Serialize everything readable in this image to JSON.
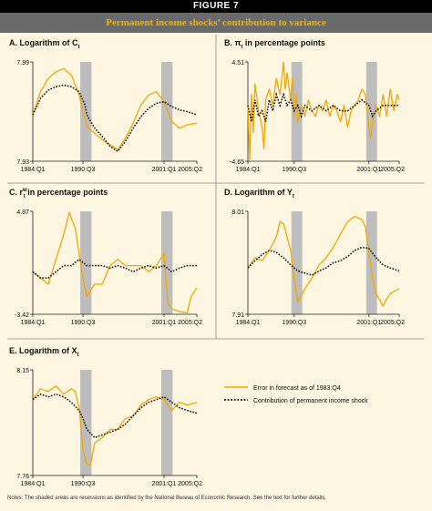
{
  "figure": {
    "label": "FIGURE 7",
    "title": "Permanent income shocks’ contribution to variance",
    "notes": "Notes: The shaded areas are recessions as identified by the National Bureau of Economic Research. See the text for further details.",
    "colors": {
      "forecast_error": "#f0a800",
      "permanent_shock": "#111111",
      "recession": "#bdbdbd",
      "panel_bg": "#fff6e2",
      "title_bg": "#6a6a6a",
      "title_text": "#f0b400"
    },
    "legend": {
      "placement": "panel-f",
      "entries": [
        {
          "name": "Error in forecast as of 1983:Q4",
          "style": "solid",
          "color": "#f0a800"
        },
        {
          "name": "Contribution of permanent income shock",
          "style": "dotted",
          "color": "#111111"
        }
      ]
    }
  },
  "chart_data": [
    {
      "type": "line",
      "panel": "A",
      "title": "A. Logarithm of C",
      "title_subscript": "t",
      "xlim": [
        1984.0,
        2005.25
      ],
      "x_ticks": [
        "1984:Q1",
        "1990:Q3",
        "2001:Q1",
        "2005:Q2"
      ],
      "ylim": [
        7.93,
        7.99
      ],
      "y_ticks": [
        "7.99",
        "7.93"
      ],
      "recessions": [
        "1990:Q3",
        "2001:Q1"
      ],
      "series": [
        {
          "name": "Error in forecast as of 1983:Q4",
          "x": [
            1984.0,
            1985.0,
            1986.0,
            1987.0,
            1988.0,
            1989.0,
            1990.0,
            1990.75,
            1991.0,
            1991.5,
            1992.0,
            1993.0,
            1994.0,
            1995.0,
            1996.0,
            1997.0,
            1998.0,
            1999.0,
            2000.0,
            2001.0,
            2002.0,
            2003.0,
            2004.0,
            2005.25
          ],
          "y": [
            7.958,
            7.972,
            7.98,
            7.984,
            7.986,
            7.982,
            7.97,
            7.956,
            7.951,
            7.949,
            7.947,
            7.943,
            7.94,
            7.937,
            7.944,
            7.953,
            7.964,
            7.97,
            7.972,
            7.966,
            7.954,
            7.95,
            7.952,
            7.953
          ]
        },
        {
          "name": "Contribution of permanent income shock",
          "x": [
            1984.0,
            1985.0,
            1986.0,
            1987.0,
            1988.0,
            1989.0,
            1990.0,
            1990.75,
            1991.0,
            1991.5,
            1992.0,
            1993.0,
            1994.0,
            1995.0,
            1996.0,
            1997.0,
            1998.0,
            1999.0,
            2000.0,
            2001.0,
            2002.0,
            2003.0,
            2004.0,
            2005.25
          ],
          "y": [
            7.958,
            7.968,
            7.973,
            7.975,
            7.976,
            7.975,
            7.972,
            7.964,
            7.958,
            7.954,
            7.95,
            7.945,
            7.939,
            7.936,
            7.942,
            7.95,
            7.957,
            7.962,
            7.965,
            7.966,
            7.963,
            7.961,
            7.96,
            7.958
          ]
        }
      ]
    },
    {
      "type": "line",
      "panel": "B",
      "title": "B. π in percentage points",
      "title_subscript": "t",
      "xlim": [
        1984.0,
        2005.25
      ],
      "x_ticks": [
        "1984:Q1",
        "1990:Q3",
        "2001:Q1",
        "2005:Q2"
      ],
      "ylim": [
        -4.65,
        4.51
      ],
      "y_ticks": [
        "4.51",
        "-4.65"
      ],
      "recessions": [
        "1990:Q3",
        "2001:Q1"
      ],
      "series": [
        {
          "name": "Error in forecast as of 1983:Q4",
          "x": [
            1984.0,
            1984.25,
            1984.5,
            1984.75,
            1985.0,
            1985.5,
            1986.0,
            1986.25,
            1986.5,
            1987.0,
            1987.5,
            1988.0,
            1988.5,
            1989.0,
            1989.25,
            1989.5,
            1990.0,
            1990.25,
            1990.5,
            1990.75,
            1991.0,
            1991.5,
            1992.0,
            1992.5,
            1993.0,
            1993.5,
            1994.0,
            1994.5,
            1995.0,
            1995.5,
            1996.0,
            1996.5,
            1997.0,
            1997.5,
            1998.0,
            1998.5,
            1999.0,
            1999.5,
            2000.0,
            2000.5,
            2001.0,
            2001.25,
            2001.5,
            2002.0,
            2002.5,
            2003.0,
            2003.5,
            2004.0,
            2004.5,
            2005.0,
            2005.25
          ],
          "y": [
            0.5,
            -4.5,
            1.5,
            -2.0,
            2.5,
            0.0,
            -1.5,
            -3.5,
            1.0,
            2.0,
            0.5,
            3.0,
            1.5,
            4.5,
            2.0,
            3.5,
            1.0,
            3.0,
            -0.5,
            1.5,
            -1.0,
            0.5,
            -0.5,
            1.0,
            0.0,
            -0.5,
            0.5,
            0.0,
            1.0,
            -0.5,
            0.5,
            0.0,
            -1.0,
            0.5,
            -1.5,
            0.0,
            0.5,
            1.0,
            2.0,
            1.5,
            -1.5,
            -2.5,
            -1.0,
            0.5,
            -0.5,
            1.5,
            -0.5,
            2.0,
            0.0,
            1.5,
            1.0
          ]
        },
        {
          "name": "Contribution of permanent income shock",
          "x": [
            1984.0,
            1984.5,
            1985.0,
            1985.5,
            1986.0,
            1986.5,
            1987.0,
            1987.5,
            1988.0,
            1988.5,
            1989.0,
            1989.5,
            1990.0,
            1990.5,
            1991.0,
            1991.5,
            1992.0,
            1993.0,
            1994.0,
            1995.0,
            1996.0,
            1997.0,
            1998.0,
            1999.0,
            2000.0,
            2001.0,
            2001.5,
            2002.0,
            2003.0,
            2004.0,
            2005.25
          ],
          "y": [
            0.5,
            -1.0,
            1.0,
            -0.5,
            0.0,
            -1.0,
            1.0,
            0.0,
            1.5,
            0.5,
            1.5,
            0.5,
            1.0,
            0.0,
            0.5,
            -0.5,
            0.5,
            0.0,
            0.5,
            0.0,
            0.5,
            0.0,
            0.0,
            0.5,
            1.0,
            0.5,
            -0.5,
            0.0,
            0.5,
            0.5,
            0.5
          ]
        }
      ]
    },
    {
      "type": "line",
      "panel": "C",
      "title": "C. r in percentage points",
      "title_subscript": "t",
      "title_superscript": "w",
      "xlim": [
        1984.0,
        2005.25
      ],
      "x_ticks": [
        "1984:Q1",
        "1990:Q3",
        "2001:Q1",
        "2005:Q2"
      ],
      "ylim": [
        -3.42,
        4.87
      ],
      "y_ticks": [
        "4.87",
        "-3.42"
      ],
      "recessions": [
        "1990:Q3",
        "2001:Q1"
      ],
      "series": [
        {
          "name": "Error in forecast as of 1983:Q4",
          "x": [
            1984.0,
            1985.0,
            1986.0,
            1987.0,
            1988.0,
            1988.75,
            1989.0,
            1989.5,
            1990.0,
            1990.5,
            1991.0,
            1991.5,
            1992.0,
            1993.0,
            1994.0,
            1995.0,
            1996.0,
            1997.0,
            1998.0,
            1999.0,
            2000.0,
            2000.5,
            2001.0,
            2001.25,
            2001.5,
            2002.0,
            2003.0,
            2004.0,
            2004.5,
            2005.25
          ],
          "y": [
            0.0,
            -0.5,
            -1.0,
            1.0,
            3.0,
            4.8,
            4.3,
            3.5,
            1.5,
            -0.5,
            -2.0,
            -1.5,
            -1.0,
            -1.0,
            0.5,
            1.0,
            0.5,
            0.5,
            0.5,
            0.0,
            0.5,
            1.0,
            1.5,
            -0.5,
            -2.5,
            -3.0,
            -3.2,
            -3.3,
            -2.0,
            -1.3
          ]
        },
        {
          "name": "Contribution of permanent income shock",
          "x": [
            1984.0,
            1985.0,
            1986.0,
            1987.0,
            1988.0,
            1989.0,
            1990.0,
            1991.0,
            1992.0,
            1993.0,
            1994.0,
            1995.0,
            1996.0,
            1997.0,
            1998.0,
            1999.0,
            2000.0,
            2001.0,
            2002.0,
            2003.0,
            2004.0,
            2005.25
          ],
          "y": [
            0.0,
            -0.5,
            -0.5,
            0.0,
            0.5,
            0.5,
            1.0,
            0.5,
            0.5,
            0.5,
            0.3,
            0.5,
            0.3,
            0.0,
            0.3,
            0.5,
            0.3,
            0.5,
            0.0,
            0.3,
            0.5,
            0.5
          ]
        }
      ]
    },
    {
      "type": "line",
      "panel": "D",
      "title": "D. Logarithm of Y",
      "title_subscript": "t",
      "xlim": [
        1984.0,
        2005.25
      ],
      "x_ticks": [
        "1984:Q1",
        "1990:Q3",
        "2001:Q1",
        "2005:Q2"
      ],
      "ylim": [
        7.91,
        8.01
      ],
      "y_ticks": [
        "8.01",
        "7.91"
      ],
      "recessions": [
        "1990:Q3",
        "2001:Q1"
      ],
      "series": [
        {
          "name": "Error in forecast as of 1983:Q4",
          "x": [
            1984.0,
            1985.0,
            1986.0,
            1987.0,
            1988.0,
            1988.5,
            1989.0,
            1990.0,
            1990.5,
            1991.0,
            1991.5,
            1992.0,
            1993.0,
            1994.0,
            1995.0,
            1996.0,
            1997.0,
            1998.0,
            1999.0,
            2000.0,
            2000.5,
            2001.0,
            2001.5,
            2002.0,
            2003.0,
            2003.5,
            2004.0,
            2005.25
          ],
          "y": [
            7.955,
            7.965,
            7.962,
            7.972,
            7.985,
            8.0,
            7.998,
            7.972,
            7.945,
            7.922,
            7.928,
            7.935,
            7.945,
            7.958,
            7.965,
            7.975,
            7.988,
            8.0,
            8.005,
            8.002,
            7.995,
            7.97,
            7.945,
            7.93,
            7.918,
            7.925,
            7.93,
            7.935
          ]
        },
        {
          "name": "Contribution of permanent income shock",
          "x": [
            1984.0,
            1985.0,
            1986.0,
            1987.0,
            1988.0,
            1989.0,
            1990.0,
            1991.0,
            1992.0,
            1993.0,
            1994.0,
            1995.0,
            1996.0,
            1997.0,
            1998.0,
            1999.0,
            2000.0,
            2001.0,
            2002.0,
            2003.0,
            2004.0,
            2005.25
          ],
          "y": [
            7.955,
            7.962,
            7.968,
            7.972,
            7.97,
            7.965,
            7.958,
            7.952,
            7.95,
            7.948,
            7.952,
            7.955,
            7.96,
            7.962,
            7.966,
            7.972,
            7.975,
            7.974,
            7.965,
            7.958,
            7.955,
            7.952
          ]
        }
      ]
    },
    {
      "type": "line",
      "panel": "E",
      "title": "E. Logarithm of X",
      "title_subscript": "t",
      "xlim": [
        1984.0,
        2005.25
      ],
      "x_ticks": [
        "1984:Q1",
        "1990:Q3",
        "2001:Q1",
        "2005:Q2"
      ],
      "ylim": [
        7.76,
        8.15
      ],
      "y_ticks": [
        "8.15",
        "7.76"
      ],
      "recessions": [
        "1990:Q3",
        "2001:Q1"
      ],
      "series": [
        {
          "name": "Error in forecast as of 1983:Q4",
          "x": [
            1984.0,
            1985.0,
            1986.0,
            1987.0,
            1988.0,
            1989.0,
            1989.5,
            1990.0,
            1990.25,
            1990.5,
            1991.0,
            1991.5,
            1992.0,
            1993.0,
            1994.0,
            1995.0,
            1996.0,
            1997.0,
            1998.0,
            1999.0,
            2000.0,
            2001.0,
            2002.0,
            2003.0,
            2004.0,
            2005.25
          ],
          "y": [
            8.04,
            8.08,
            8.07,
            8.09,
            8.06,
            8.08,
            8.07,
            8.01,
            7.94,
            7.85,
            7.8,
            7.8,
            7.88,
            7.9,
            7.93,
            7.93,
            7.97,
            7.98,
            8.02,
            8.04,
            8.05,
            8.04,
            8.0,
            8.03,
            8.02,
            8.03
          ]
        },
        {
          "name": "Contribution of permanent income shock",
          "x": [
            1984.0,
            1985.0,
            1986.0,
            1987.0,
            1988.0,
            1989.0,
            1990.0,
            1990.5,
            1991.0,
            1992.0,
            1993.0,
            1994.0,
            1995.0,
            1996.0,
            1997.0,
            1998.0,
            1999.0,
            2000.0,
            2001.0,
            2002.0,
            2003.0,
            2004.0,
            2005.25
          ],
          "y": [
            8.04,
            8.06,
            8.05,
            8.06,
            8.05,
            8.03,
            8.0,
            7.97,
            7.93,
            7.9,
            7.91,
            7.92,
            7.93,
            7.95,
            7.98,
            8.01,
            8.03,
            8.04,
            8.05,
            8.03,
            8.01,
            8.0,
            7.99
          ]
        }
      ]
    }
  ]
}
